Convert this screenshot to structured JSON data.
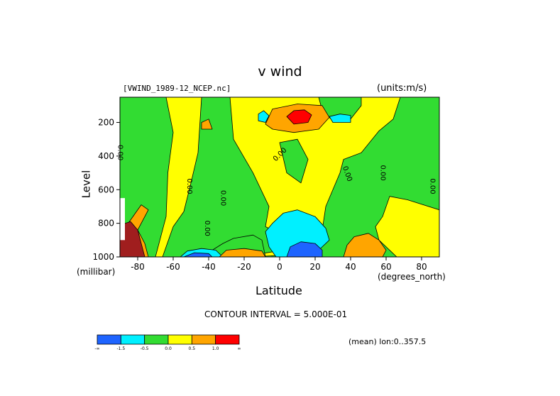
{
  "header": {
    "title": "v wind",
    "file": "[VWIND_1989-12_NCEP.nc]",
    "units": "(units:m/s)"
  },
  "footer": {
    "contour_interval": "CONTOUR INTERVAL = 5.000E-01",
    "mean": "(mean) lon:0..357.5"
  },
  "colors": {
    "blue": "#1e64ff",
    "cyan": "#00f0ff",
    "green": "#32dc32",
    "yellow": "#ffff00",
    "orange": "#ffa500",
    "red": "#ff0000",
    "darkred": "#a01e1e"
  },
  "chart_data": {
    "type": "heatmap",
    "title": "v wind",
    "xlabel": "Latitude",
    "ylabel": "Level",
    "x_units": "(degrees_north)",
    "y_units": "(millibar)",
    "xlim": [
      -90,
      90
    ],
    "ylim": [
      1000,
      50
    ],
    "x_ticks": [
      -80,
      -60,
      -40,
      -20,
      0,
      20,
      40,
      60,
      80
    ],
    "x_tick_labels": [
      "-80",
      "-60",
      "-40",
      "-20",
      "0",
      "20",
      "40",
      "60",
      "80"
    ],
    "y_ticks": [
      200,
      400,
      600,
      800,
      1000
    ],
    "y_tick_labels": [
      "200",
      "400",
      "600",
      "800",
      "1000"
    ],
    "contour_interval": 0.5,
    "contour_labels": [
      "0.00",
      "0.00",
      "0.00",
      "0.00",
      "0.00",
      "0.00",
      "0.00",
      "0.00"
    ],
    "colorbar": {
      "bin_colors": [
        "#1e64ff",
        "#00f0ff",
        "#32dc32",
        "#ffff00",
        "#ffa500",
        "#ff0000"
      ],
      "labels": [
        "-∞",
        "-1.5",
        "-0.5",
        "0.0",
        "0.5",
        "1.0",
        "∞"
      ]
    },
    "regions": [
      {
        "level": "yellow",
        "poly": [
          [
            -90,
            50
          ],
          [
            90,
            50
          ],
          [
            90,
            1000
          ],
          [
            -90,
            1000
          ]
        ]
      },
      {
        "level": "green",
        "poly": [
          [
            -90,
            50
          ],
          [
            -64,
            50
          ],
          [
            -60,
            260
          ],
          [
            -63,
            500
          ],
          [
            -64,
            760
          ],
          [
            -70,
            1000
          ],
          [
            -90,
            1000
          ]
        ]
      },
      {
        "level": "green",
        "poly": [
          [
            -44,
            50
          ],
          [
            -28,
            50
          ],
          [
            -26,
            300
          ],
          [
            -15,
            500
          ],
          [
            -6,
            700
          ],
          [
            -8,
            820
          ],
          [
            4,
            880
          ],
          [
            2,
            960
          ],
          [
            -22,
            1000
          ],
          [
            -66,
            1000
          ],
          [
            -60,
            820
          ],
          [
            -54,
            730
          ],
          [
            -50,
            560
          ],
          [
            -46,
            380
          ]
        ]
      },
      {
        "level": "green",
        "poly": [
          [
            -16,
            1000
          ],
          [
            2,
            990
          ],
          [
            4,
            920
          ],
          [
            6,
            870
          ],
          [
            24,
            840
          ],
          [
            26,
            700
          ],
          [
            34,
            500
          ],
          [
            36,
            420
          ],
          [
            46,
            380
          ],
          [
            56,
            250
          ],
          [
            64,
            180
          ],
          [
            68,
            50
          ],
          [
            90,
            50
          ],
          [
            90,
            720
          ],
          [
            72,
            660
          ],
          [
            62,
            640
          ],
          [
            58,
            760
          ],
          [
            54,
            820
          ],
          [
            56,
            900
          ],
          [
            66,
            1000
          ]
        ]
      },
      {
        "level": "green",
        "poly": [
          [
            -40,
            1000
          ],
          [
            -38,
            960
          ],
          [
            -32,
            920
          ],
          [
            -26,
            890
          ],
          [
            -15,
            870
          ],
          [
            -10,
            900
          ],
          [
            -8,
            1000
          ]
        ]
      },
      {
        "level": "green",
        "poly": [
          [
            22,
            50
          ],
          [
            24,
            130
          ],
          [
            30,
            190
          ],
          [
            40,
            180
          ],
          [
            46,
            100
          ],
          [
            46,
            50
          ]
        ]
      },
      {
        "level": "green",
        "poly": [
          [
            0,
            320
          ],
          [
            10,
            300
          ],
          [
            16,
            420
          ],
          [
            12,
            560
          ],
          [
            4,
            500
          ]
        ]
      },
      {
        "level": "cyan",
        "poly": [
          [
            -8,
            850
          ],
          [
            -4,
            800
          ],
          [
            2,
            740
          ],
          [
            10,
            720
          ],
          [
            20,
            760
          ],
          [
            26,
            830
          ],
          [
            28,
            900
          ],
          [
            22,
            960
          ],
          [
            14,
            1000
          ],
          [
            -2,
            1000
          ],
          [
            -6,
            940
          ]
        ]
      },
      {
        "level": "cyan",
        "poly": [
          [
            -56,
            1000
          ],
          [
            -52,
            965
          ],
          [
            -44,
            950
          ],
          [
            -36,
            960
          ],
          [
            -32,
            1000
          ]
        ]
      },
      {
        "level": "cyan",
        "poly": [
          [
            -12,
            150
          ],
          [
            -9,
            130
          ],
          [
            -6,
            160
          ],
          [
            -8,
            200
          ],
          [
            -12,
            190
          ]
        ]
      },
      {
        "level": "cyan",
        "poly": [
          [
            28,
            165
          ],
          [
            34,
            150
          ],
          [
            40,
            158
          ],
          [
            40,
            200
          ],
          [
            30,
            200
          ]
        ]
      },
      {
        "level": "blue",
        "poly": [
          [
            4,
            1000
          ],
          [
            6,
            940
          ],
          [
            12,
            910
          ],
          [
            20,
            920
          ],
          [
            24,
            960
          ],
          [
            24,
            1000
          ]
        ]
      },
      {
        "level": "blue",
        "poly": [
          [
            -54,
            1000
          ],
          [
            -48,
            975
          ],
          [
            -40,
            980
          ],
          [
            -38,
            1000
          ]
        ]
      },
      {
        "level": "orange",
        "poly": [
          [
            -8,
            210
          ],
          [
            -4,
            120
          ],
          [
            10,
            90
          ],
          [
            24,
            100
          ],
          [
            28,
            170
          ],
          [
            22,
            240
          ],
          [
            8,
            260
          ],
          [
            -4,
            240
          ]
        ]
      },
      {
        "level": "orange",
        "poly": [
          [
            -34,
            1000
          ],
          [
            -30,
            960
          ],
          [
            -20,
            950
          ],
          [
            -10,
            965
          ],
          [
            -8,
            1000
          ]
        ]
      },
      {
        "level": "orange",
        "poly": [
          [
            38,
            930
          ],
          [
            42,
            880
          ],
          [
            50,
            860
          ],
          [
            56,
            900
          ],
          [
            60,
            960
          ],
          [
            58,
            1000
          ],
          [
            36,
            1000
          ]
        ]
      },
      {
        "level": "orange",
        "poly": [
          [
            -84,
            780
          ],
          [
            -78,
            690
          ],
          [
            -74,
            720
          ],
          [
            -80,
            840
          ],
          [
            -76,
            920
          ],
          [
            -74,
            1000
          ],
          [
            -90,
            1000
          ],
          [
            -90,
            860
          ]
        ]
      },
      {
        "level": "orange",
        "poly": [
          [
            -44,
            200
          ],
          [
            -40,
            180
          ],
          [
            -38,
            240
          ],
          [
            -44,
            240
          ]
        ]
      },
      {
        "level": "red",
        "poly": [
          [
            4,
            165
          ],
          [
            8,
            130
          ],
          [
            14,
            125
          ],
          [
            18,
            155
          ],
          [
            16,
            200
          ],
          [
            8,
            210
          ]
        ]
      },
      {
        "level": "darkred",
        "poly": [
          [
            -90,
            810
          ],
          [
            -84,
            790
          ],
          0,
          [
            -80,
            840
          ],
          [
            -78,
            920
          ],
          [
            -76,
            1000
          ],
          [
            -90,
            1000
          ]
        ]
      }
    ]
  }
}
